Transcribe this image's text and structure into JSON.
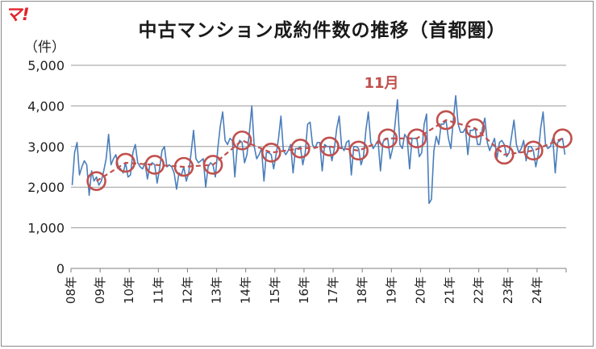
{
  "logo_text": "マ!",
  "chart_data": {
    "type": "line",
    "title": "中古マンション成約件数の推移（首都圏）",
    "unit_label": "（件）",
    "ylim": [
      0,
      5000
    ],
    "y_ticks": [
      0,
      1000,
      2000,
      3000,
      4000,
      5000
    ],
    "y_tick_labels": [
      "0",
      "1,000",
      "2,000",
      "3,000",
      "4,000",
      "5,000"
    ],
    "x_tick_labels": [
      "08年",
      "09年",
      "10年",
      "11年",
      "12年",
      "13年",
      "14年",
      "15年",
      "16年",
      "17年",
      "18年",
      "19年",
      "20年",
      "21年",
      "22年",
      "23年",
      "24年"
    ],
    "grid": true,
    "colors": {
      "monthly": "#4a7ebb",
      "november": "#c0504d",
      "logo": "#e1262c"
    },
    "series": [
      {
        "name": "",
        "values": [
          2050,
          2850,
          3100,
          2300,
          2500,
          2650,
          2550,
          1800,
          2400,
          2150,
          2250,
          2050,
          2150,
          2400,
          2700,
          3300,
          2550,
          2700,
          2800,
          2500,
          2450,
          2350,
          2600,
          2250,
          2300,
          2850,
          3050,
          2600,
          2500,
          2450,
          2600,
          2200,
          2550,
          2600,
          2550,
          2100,
          2450,
          2900,
          3000,
          2500,
          2550,
          2500,
          2350,
          1950,
          2350,
          2300,
          2500,
          2150,
          2350,
          2850,
          3400,
          2700,
          2600,
          2650,
          2700,
          2000,
          2500,
          2600,
          2550,
          2250,
          2950,
          3500,
          3850,
          3150,
          3050,
          3200,
          3150,
          2250,
          3000,
          3150,
          3100,
          2600,
          2800,
          3350,
          4000,
          3000,
          2700,
          2800,
          2950,
          2150,
          2850,
          2850,
          2800,
          2450,
          2800,
          3200,
          3750,
          2900,
          2800,
          2900,
          3050,
          2350,
          2950,
          2950,
          3000,
          2550,
          2850,
          3550,
          3600,
          3050,
          2950,
          3100,
          3100,
          2400,
          3050,
          3000,
          3000,
          2650,
          2950,
          3450,
          3750,
          3000,
          2900,
          3100,
          3150,
          2300,
          3000,
          3000,
          2950,
          2550,
          2750,
          3400,
          3850,
          3100,
          2950,
          3050,
          3150,
          2400,
          3100,
          3200,
          3200,
          2700,
          2950,
          3550,
          4150,
          3050,
          2950,
          3300,
          3200,
          2450,
          3200,
          3200,
          3200,
          2750,
          2850,
          3550,
          3800,
          1600,
          1700,
          2900,
          3250,
          3050,
          3550,
          3550,
          3650,
          3200,
          2950,
          3650,
          4250,
          3550,
          3350,
          3350,
          3450,
          2800,
          3400,
          3400,
          3450,
          3050,
          3050,
          3450,
          3700,
          3100,
          2900,
          3050,
          3200,
          2700,
          3100,
          3150,
          3050,
          2750,
          2850,
          3250,
          3650,
          3050,
          2850,
          2950,
          3150,
          2650,
          3000,
          3000,
          2900,
          2500,
          2800,
          3450,
          3850,
          3050,
          2950,
          3000,
          3200,
          2350,
          3100,
          3150,
          3200,
          2800
        ]
      },
      {
        "name": "11月",
        "values": [
          2150,
          2600,
          2550,
          2500,
          2550,
          3150,
          2850,
          2950,
          3000,
          2900,
          3200,
          3200,
          3650,
          3450,
          2800,
          2900,
          3200
        ]
      }
    ]
  }
}
